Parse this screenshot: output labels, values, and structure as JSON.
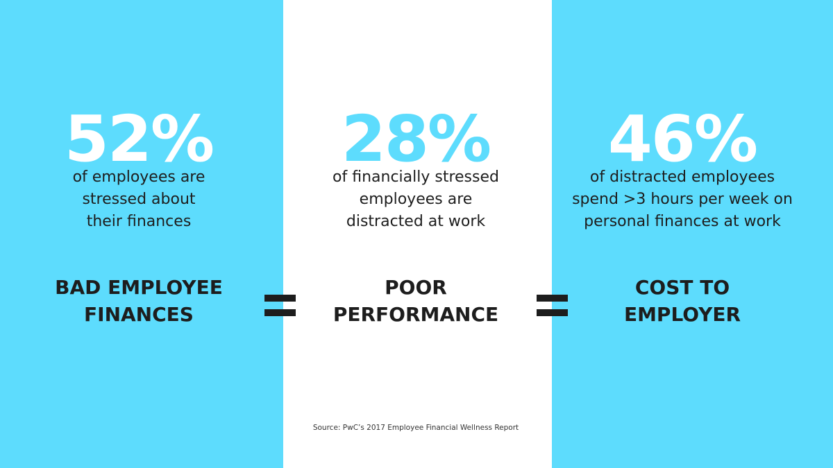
{
  "panels": [
    {
      "stat": "52%",
      "description": [
        "of employees are",
        "stressed about",
        "their finances"
      ],
      "label": [
        "BAD EMPLOYEE",
        "FINANCES"
      ]
    },
    {
      "stat": "28%",
      "description": [
        "of financially stressed",
        "employees are",
        "distracted at work"
      ],
      "label": [
        "POOR",
        "PERFORMANCE"
      ]
    },
    {
      "stat": "46%",
      "description": [
        "of distracted employees",
        "spend >3 hours per week on",
        "personal finances at work"
      ],
      "label": [
        "COST TO",
        "EMPLOYER"
      ]
    }
  ],
  "source": "Source: PwC’s 2017 Employee Financial Wellness Report"
}
